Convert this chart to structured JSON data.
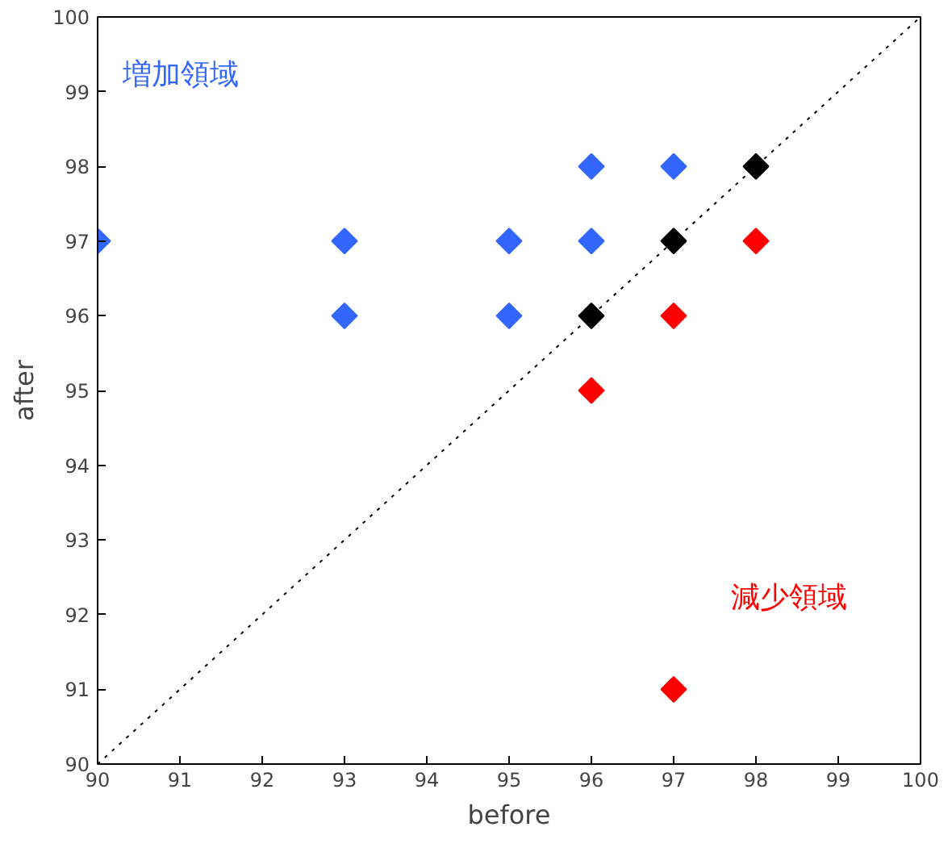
{
  "chart_data": {
    "type": "scatter",
    "xlabel": "before",
    "ylabel": "after",
    "xlim": [
      90,
      100
    ],
    "ylim": [
      90,
      100
    ],
    "xticks": [
      90,
      91,
      92,
      93,
      94,
      95,
      96,
      97,
      98,
      99,
      100
    ],
    "yticks": [
      90,
      91,
      92,
      93,
      94,
      95,
      96,
      97,
      98,
      99,
      100
    ],
    "grid": false,
    "marker": "diamond",
    "series": [
      {
        "color": "#3366ff",
        "x": [
          90,
          93,
          93,
          95,
          95,
          96,
          96,
          97
        ],
        "values": [
          97,
          97,
          96,
          97,
          96,
          98,
          97,
          98
        ]
      },
      {
        "color": "#ff0000",
        "x": [
          96,
          97,
          98,
          97
        ],
        "values": [
          95,
          96,
          97,
          91
        ]
      },
      {
        "color": "#000000",
        "x": [
          96,
          97,
          98
        ],
        "values": [
          96,
          97,
          98
        ]
      },
      {
        "type": "line",
        "color": "#000000",
        "line_style": "dotted",
        "marker": "none",
        "x": [
          90,
          100
        ],
        "values": [
          90,
          100
        ]
      }
    ],
    "annotations": [
      "増加領域",
      "減少領域"
    ]
  }
}
